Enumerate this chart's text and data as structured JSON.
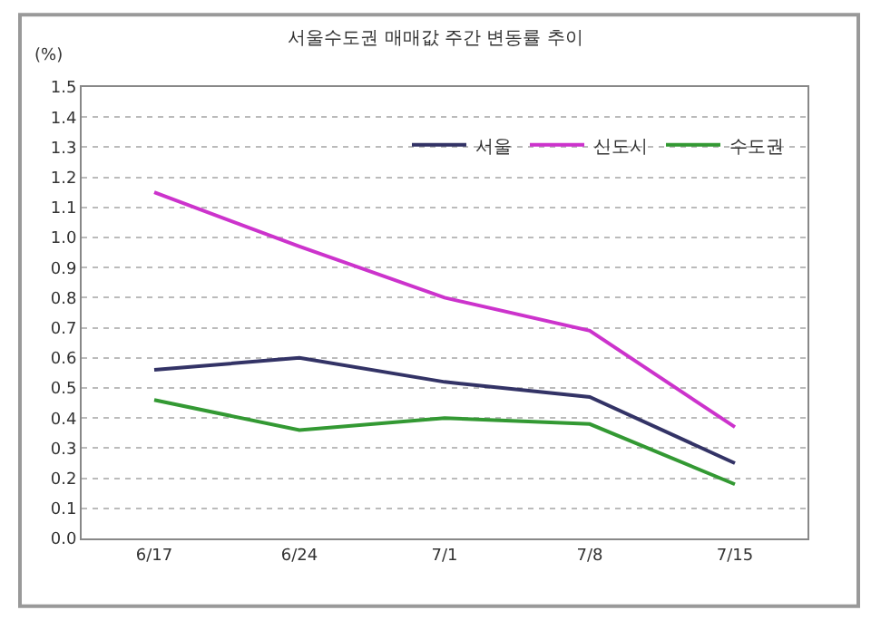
{
  "chart_data": {
    "type": "line",
    "title": "서울수도권 매매값 주간 변동률 추이",
    "ylabel": "(%)",
    "categories": [
      "6/17",
      "6/24",
      "7/1",
      "7/8",
      "7/15"
    ],
    "series": [
      {
        "name": "서울",
        "color": "#333366",
        "values": [
          0.56,
          0.6,
          0.52,
          0.47,
          0.25
        ]
      },
      {
        "name": "신도시",
        "color": "#cc33cc",
        "values": [
          1.15,
          0.97,
          0.8,
          0.69,
          0.37
        ]
      },
      {
        "name": "수도권",
        "color": "#339933",
        "values": [
          0.46,
          0.36,
          0.4,
          0.38,
          0.18
        ]
      }
    ],
    "ylim": [
      0,
      1.5
    ],
    "yticks": [
      {
        "value": 0,
        "label": "0.0"
      },
      {
        "value": 0.1,
        "label": "0.1"
      },
      {
        "value": 0.2,
        "label": "0.2"
      },
      {
        "value": 0.3,
        "label": "0.3"
      },
      {
        "value": 0.4,
        "label": "0.4"
      },
      {
        "value": 0.5,
        "label": "0.5"
      },
      {
        "value": 0.6,
        "label": "0.6"
      },
      {
        "value": 0.7,
        "label": "0.7"
      },
      {
        "value": 0.8,
        "label": "0.8"
      },
      {
        "value": 0.9,
        "label": "0.9"
      },
      {
        "value": 1,
        "label": "1.0"
      },
      {
        "value": 1.1,
        "label": "1.1"
      },
      {
        "value": 1.2,
        "label": "1.2"
      },
      {
        "value": 1.3,
        "label": "1.3"
      },
      {
        "value": 1.4,
        "label": "1.4"
      },
      {
        "value": 1.5,
        "label": "1.5"
      }
    ],
    "grid": "y",
    "legend": "top right",
    "marker": "none",
    "line_style": "solid"
  }
}
